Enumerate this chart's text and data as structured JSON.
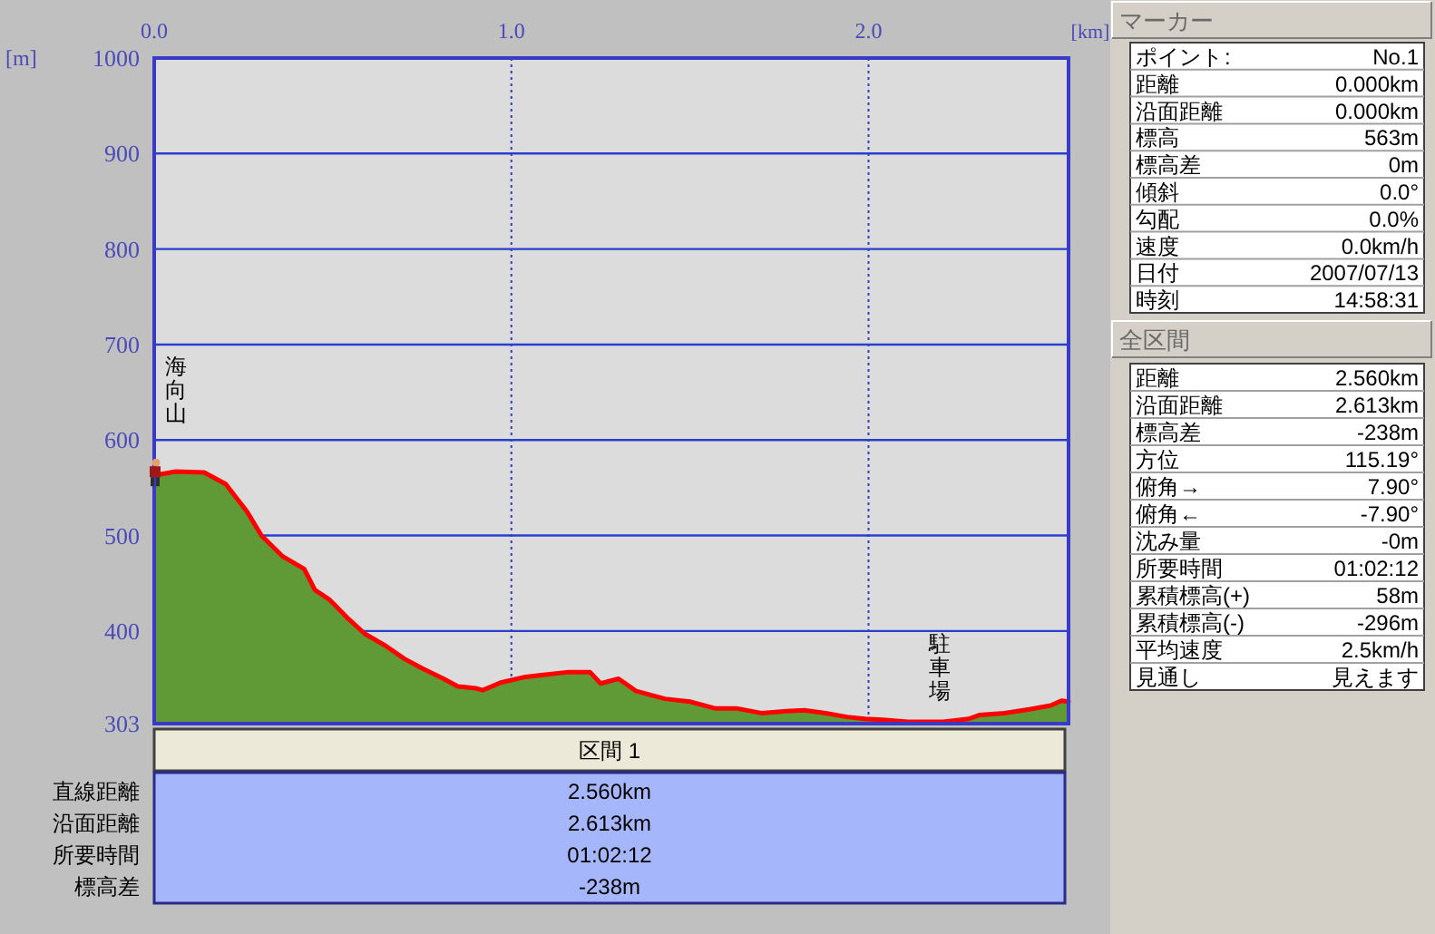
{
  "chart_data": [
    {
      "type": "area",
      "xlabel": "[km]",
      "ylabel": "[m]",
      "x": [
        0,
        0.06,
        0.14,
        0.2,
        0.26,
        0.3,
        0.36,
        0.42,
        0.45,
        0.49,
        0.54,
        0.59,
        0.65,
        0.7,
        0.75,
        0.81,
        0.85,
        0.9,
        0.92,
        0.97,
        1.04,
        1.09,
        1.16,
        1.22,
        1.25,
        1.3,
        1.35,
        1.39,
        1.43,
        1.5,
        1.57,
        1.63,
        1.7,
        1.77,
        1.82,
        1.88,
        1.94,
        1.99,
        2.04,
        2.11,
        2.21,
        2.28,
        2.31,
        2.38,
        2.45,
        2.51,
        2.54,
        2.56
      ],
      "series": [
        {
          "type": "area",
          "color": "#5f9a36",
          "values": [
            563,
            567,
            566,
            554,
            525,
            500,
            478,
            465,
            443,
            433,
            414,
            397,
            384,
            371,
            361,
            350,
            342,
            340,
            338,
            346,
            352,
            354,
            357,
            357,
            345,
            350,
            337,
            333,
            329,
            326,
            319,
            319,
            314,
            316,
            317,
            314,
            310,
            308,
            307,
            305,
            305,
            308,
            312,
            314,
            318,
            322,
            327,
            326
          ]
        },
        {
          "type": "line",
          "color": "#ff0000",
          "values": [
            563,
            567,
            566,
            554,
            525,
            500,
            478,
            465,
            443,
            433,
            414,
            397,
            384,
            371,
            361,
            350,
            342,
            340,
            338,
            346,
            352,
            354,
            357,
            357,
            345,
            350,
            337,
            333,
            329,
            326,
            319,
            319,
            314,
            316,
            317,
            314,
            310,
            308,
            307,
            305,
            305,
            308,
            312,
            314,
            318,
            322,
            327,
            326
          ]
        }
      ],
      "xlim": [
        0,
        2.56
      ],
      "xticks": [
        {
          "value": 0,
          "label": "0.0"
        },
        {
          "value": 1,
          "label": "1.0"
        },
        {
          "value": 2,
          "label": "2.0"
        }
      ],
      "ylim": [
        303,
        1000
      ],
      "yticks": [
        303,
        400,
        500,
        600,
        700,
        800,
        900,
        1000
      ],
      "grid": true,
      "annotations": [
        "海向山",
        "駐車場"
      ]
    },
    {
      "type": "other",
      "title": "マーカー",
      "categories": [
        "ポイント",
        "距離",
        "沿面距離",
        "標高",
        "標高差",
        "傾斜",
        "勾配",
        "速度",
        "日付",
        "時刻"
      ],
      "value_labels": [
        "No.1",
        "0.000km",
        "0.000km",
        "563m",
        "0m",
        "0.0°",
        "0.0%",
        "0.0km/h",
        "2007/07/13",
        "14:58:31"
      ],
      "annotations": [
        ":"
      ]
    },
    {
      "type": "other",
      "title": "全区間",
      "categories": [
        "距離",
        "沿面距離",
        "標高差",
        "方位",
        "俯角→",
        "俯角←",
        "沈み量",
        "所要時間",
        "累積標高(+)",
        "累積標高(-)",
        "平均速度",
        "見通し"
      ],
      "value_labels": [
        "2.560km",
        "2.613km",
        "-238m",
        "115.19°",
        "7.90°",
        "-7.90°",
        "-0m",
        "01:02:12",
        "58m",
        "-296m",
        "2.5km/h",
        "見えます"
      ]
    },
    {
      "type": "other",
      "title": "区間 1",
      "categories": [
        "直線距離",
        "沿面距離",
        "所要時間",
        "標高差"
      ],
      "value_labels": [
        "2.560km",
        "2.613km",
        "01:02:12",
        "-238m"
      ]
    }
  ]
}
